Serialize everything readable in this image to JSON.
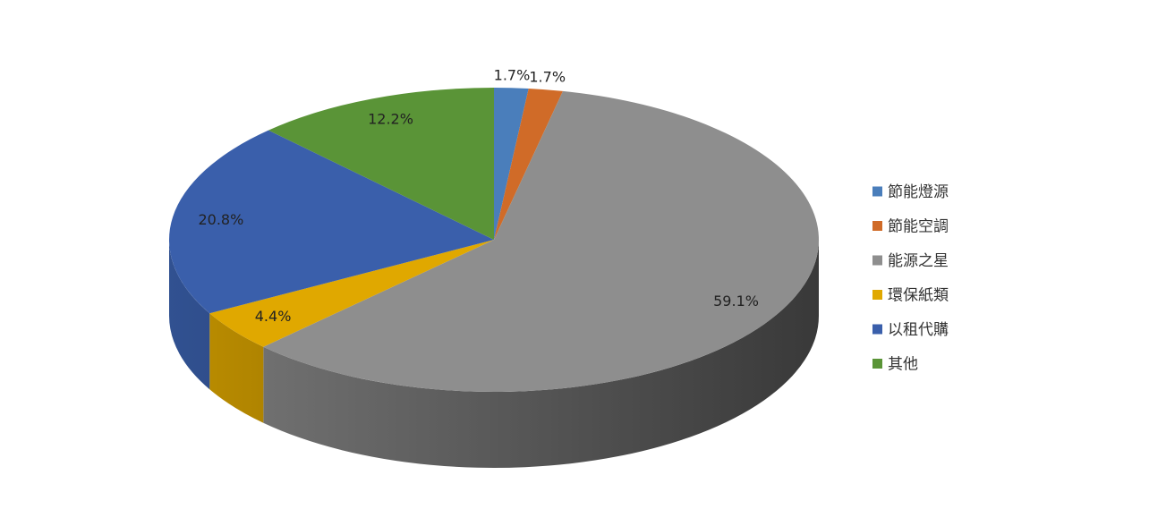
{
  "chart_data": {
    "type": "pie",
    "categories": [
      "節能燈源",
      "節能空調",
      "能源之星",
      "環保紙類",
      "以租代購",
      "其他"
    ],
    "values": [
      1.7,
      1.7,
      59.1,
      4.4,
      20.8,
      12.2
    ],
    "value_labels": [
      "1.7%",
      "1.7%",
      "59.1%",
      "4.4%",
      "20.8%",
      "12.2%"
    ],
    "colors": [
      "#4a7ebb",
      "#d06b28",
      "#8e8e8e",
      "#e0a800",
      "#3a5fab",
      "#5a9437"
    ],
    "legend": "right"
  }
}
